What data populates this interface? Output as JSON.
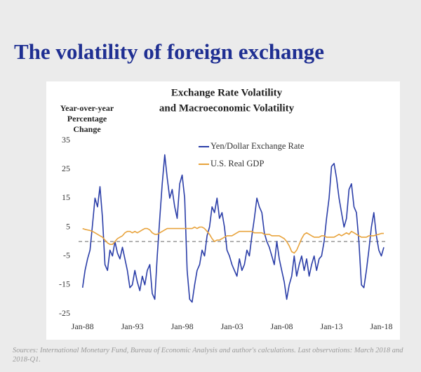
{
  "slide": {
    "title": "The volatility of foreign exchange",
    "sources": "Sources: International Monetary Fund, Bureau of Economic Analysis and author's calculations. Last observations: March 2018 and 2018-Q1."
  },
  "chart_data": {
    "type": "line",
    "title_lines": [
      "Exchange Rate Volatility",
      "and Macroeconomic Volatility"
    ],
    "ylabel_lines": [
      "Year-over-year",
      "Percentage",
      "Change"
    ],
    "x": [
      1988,
      1988.25,
      1988.5,
      1988.75,
      1989,
      1989.25,
      1989.5,
      1989.75,
      1990,
      1990.25,
      1990.5,
      1990.75,
      1991,
      1991.25,
      1991.5,
      1991.75,
      1992,
      1992.25,
      1992.5,
      1992.75,
      1993,
      1993.25,
      1993.5,
      1993.75,
      1994,
      1994.25,
      1994.5,
      1994.75,
      1995,
      1995.25,
      1995.5,
      1995.75,
      1996,
      1996.25,
      1996.5,
      1996.75,
      1997,
      1997.25,
      1997.5,
      1997.75,
      1998,
      1998.25,
      1998.5,
      1998.75,
      1999,
      1999.25,
      1999.5,
      1999.75,
      2000,
      2000.25,
      2000.5,
      2000.75,
      2001,
      2001.25,
      2001.5,
      2001.75,
      2002,
      2002.25,
      2002.5,
      2002.75,
      2003,
      2003.25,
      2003.5,
      2003.75,
      2004,
      2004.25,
      2004.5,
      2004.75,
      2005,
      2005.25,
      2005.5,
      2005.75,
      2006,
      2006.25,
      2006.5,
      2006.75,
      2007,
      2007.25,
      2007.5,
      2007.75,
      2008,
      2008.25,
      2008.5,
      2008.75,
      2009,
      2009.25,
      2009.5,
      2009.75,
      2010,
      2010.25,
      2010.5,
      2010.75,
      2011,
      2011.25,
      2011.5,
      2011.75,
      2012,
      2012.25,
      2012.5,
      2012.75,
      2013,
      2013.25,
      2013.5,
      2013.75,
      2014,
      2014.25,
      2014.5,
      2014.75,
      2015,
      2015.25,
      2015.5,
      2015.75,
      2016,
      2016.25,
      2016.5,
      2016.75,
      2017,
      2017.25,
      2017.5,
      2017.75,
      2018,
      2018.25
    ],
    "series": [
      {
        "name": "Yen/Dollar Exchange Rate",
        "color": "#2b3ea8",
        "values": [
          -16,
          -10,
          -6,
          -3,
          6,
          15,
          12,
          19,
          8,
          -8,
          -10,
          -3,
          -5,
          0,
          -4,
          -6,
          -2,
          -6,
          -10,
          -16,
          -15,
          -10,
          -14,
          -17,
          -12,
          -15,
          -10,
          -8,
          -18,
          -20,
          -5,
          8,
          20,
          30,
          22,
          15,
          18,
          12,
          8,
          20,
          23,
          15,
          -10,
          -20,
          -21,
          -15,
          -10,
          -8,
          -3,
          -5,
          2,
          5,
          12,
          10,
          15,
          8,
          10,
          5,
          -3,
          -5,
          -8,
          -10,
          -12,
          -6,
          -10,
          -8,
          -3,
          -5,
          2,
          8,
          15,
          12,
          10,
          3,
          0,
          -2,
          -5,
          -8,
          0,
          -6,
          -10,
          -14,
          -20,
          -15,
          -12,
          -5,
          -12,
          -8,
          -5,
          -10,
          -6,
          -12,
          -8,
          -5,
          -10,
          -6,
          -5,
          0,
          8,
          15,
          26,
          27,
          22,
          15,
          10,
          5,
          8,
          18,
          20,
          12,
          10,
          0,
          -15,
          -16,
          -10,
          -3,
          5,
          10,
          2,
          -3,
          -5,
          -2
        ]
      },
      {
        "name": "U.S. Real GDP",
        "color": "#e8a33c",
        "values": [
          4.5,
          4.2,
          4,
          3.8,
          3.5,
          3,
          2.5,
          2,
          1.5,
          0.5,
          -0.5,
          -1,
          -1,
          0,
          1,
          1.5,
          2,
          3,
          3.5,
          3.5,
          3,
          3.5,
          3,
          3.5,
          4,
          4.5,
          4.5,
          4,
          3,
          2.5,
          2.5,
          3,
          3.5,
          4,
          4.5,
          4.5,
          4.5,
          4.5,
          4.5,
          4.5,
          4.5,
          4.5,
          4.5,
          4.5,
          4.5,
          5,
          4.5,
          5,
          5,
          4.5,
          3.5,
          2.5,
          1,
          0,
          0.5,
          0.5,
          1,
          1.5,
          2,
          2,
          2,
          2.5,
          3,
          3.5,
          3.5,
          3.5,
          3.5,
          3.5,
          3.5,
          3,
          3,
          3,
          3,
          2.5,
          2.5,
          2.5,
          2,
          2,
          2,
          2,
          1.5,
          1,
          0,
          -1.5,
          -3.5,
          -4,
          -3,
          -1,
          1,
          2.5,
          3,
          2.5,
          2,
          1.5,
          1.5,
          1.5,
          2,
          2,
          1.5,
          1.5,
          1.5,
          1.5,
          2,
          2.5,
          2,
          2.5,
          3,
          2.5,
          3.5,
          3,
          2.5,
          2,
          1.5,
          1.5,
          1.5,
          2,
          2,
          2,
          2.3,
          2.5,
          2.8,
          2.8
        ]
      }
    ],
    "xlim": [
      1987.6,
      2018.6
    ],
    "xticks": [
      {
        "value": 1988,
        "label": "Jan-88"
      },
      {
        "value": 1993,
        "label": "Jan-93"
      },
      {
        "value": 1998,
        "label": "Jan-98"
      },
      {
        "value": 2003,
        "label": "Jan-03"
      },
      {
        "value": 2008,
        "label": "Jan-08"
      },
      {
        "value": 2013,
        "label": "Jan-13"
      },
      {
        "value": 2018,
        "label": "Jan-18"
      }
    ],
    "ylim": [
      -25,
      35
    ],
    "yticks": [
      -25,
      -15,
      -5,
      5,
      15,
      25,
      35
    ],
    "reference_line": 0,
    "legend": "upper center",
    "grid": false
  }
}
